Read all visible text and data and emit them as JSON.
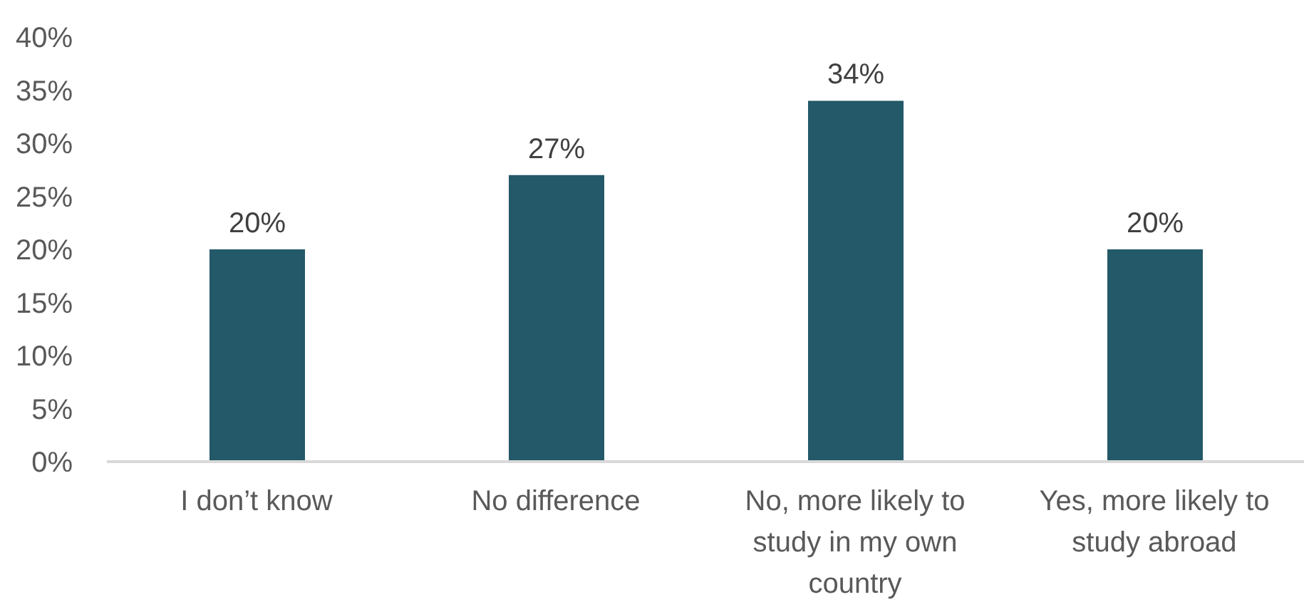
{
  "chart_data": {
    "type": "bar",
    "categories": [
      "I don’t know",
      "No difference",
      "No, more likely to study in my own country",
      "Yes, more likely to study abroad"
    ],
    "values": [
      20,
      27,
      34,
      20
    ],
    "color": "#235968",
    "value_labels": [
      "20%",
      "27%",
      "34%",
      "20%"
    ],
    "ylim": [
      0,
      40
    ],
    "yticks": [
      {
        "value": 0,
        "label": "0%"
      },
      {
        "value": 5,
        "label": "5%"
      },
      {
        "value": 10,
        "label": "10%"
      },
      {
        "value": 15,
        "label": "15%"
      },
      {
        "value": 20,
        "label": "20%"
      },
      {
        "value": 25,
        "label": "25%"
      },
      {
        "value": 30,
        "label": "30%"
      },
      {
        "value": 35,
        "label": "35%"
      },
      {
        "value": 40,
        "label": "40%"
      }
    ],
    "grid": false,
    "legend": false
  }
}
